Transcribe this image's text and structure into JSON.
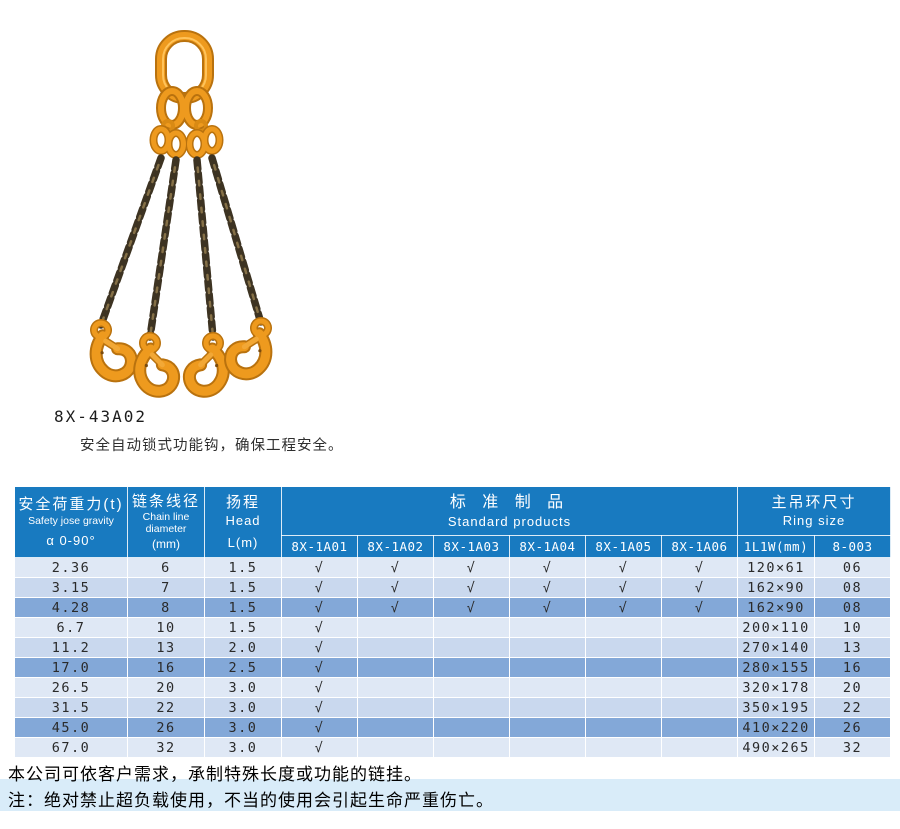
{
  "product": {
    "code": "8X-43A02",
    "description": "安全自动锁式功能钩，确保工程安全。",
    "image_name": "four-leg-chain-sling-with-self-locking-hooks"
  },
  "colors": {
    "header_blue": "#187ac0",
    "row_light": "#dfe8f5",
    "row_medium": "#c9d8ee",
    "row_highlight": "#83a8d8",
    "footer_band": "#d9ecf9",
    "sling_orange": "#ee9a1e",
    "chain_dark": "#3d3322"
  },
  "table": {
    "col_safety": {
      "zh": "安全荷重力(t)",
      "en": "Safety jose gravity",
      "angle": "α 0-90°"
    },
    "col_chain": {
      "zh": "链条线径",
      "en_line1": "Chain line",
      "en_line2": "diameter",
      "unit": "(mm)"
    },
    "col_head": {
      "zh": "扬程",
      "en": "Head",
      "unit": "L(m)"
    },
    "group_standard": {
      "zh": "标 准 制 品",
      "en": "Standard products"
    },
    "group_ring": {
      "zh": "主吊环尺寸",
      "en": "Ring size"
    },
    "models": [
      "8X-1A01",
      "8X-1A02",
      "8X-1A03",
      "8X-1A04",
      "8X-1A05",
      "8X-1A06"
    ],
    "ring_cols": [
      "1L1W(mm)",
      "8-003"
    ],
    "check_mark": "√",
    "rows": [
      {
        "load": "2.36",
        "dia": "6",
        "head": "1.5",
        "checks": [
          true,
          true,
          true,
          true,
          true,
          true
        ],
        "ring": "120×61",
        "ring_code": "06",
        "shade": "light"
      },
      {
        "load": "3.15",
        "dia": "7",
        "head": "1.5",
        "checks": [
          true,
          true,
          true,
          true,
          true,
          true
        ],
        "ring": "162×90",
        "ring_code": "08",
        "shade": "medium"
      },
      {
        "load": "4.28",
        "dia": "8",
        "head": "1.5",
        "checks": [
          true,
          true,
          true,
          true,
          true,
          true
        ],
        "ring": "162×90",
        "ring_code": "08",
        "shade": "highlight"
      },
      {
        "load": "6.7",
        "dia": "10",
        "head": "1.5",
        "checks": [
          true,
          false,
          false,
          false,
          false,
          false
        ],
        "ring": "200×110",
        "ring_code": "10",
        "shade": "light"
      },
      {
        "load": "11.2",
        "dia": "13",
        "head": "2.0",
        "checks": [
          true,
          false,
          false,
          false,
          false,
          false
        ],
        "ring": "270×140",
        "ring_code": "13",
        "shade": "medium"
      },
      {
        "load": "17.0",
        "dia": "16",
        "head": "2.5",
        "checks": [
          true,
          false,
          false,
          false,
          false,
          false
        ],
        "ring": "280×155",
        "ring_code": "16",
        "shade": "highlight"
      },
      {
        "load": "26.5",
        "dia": "20",
        "head": "3.0",
        "checks": [
          true,
          false,
          false,
          false,
          false,
          false
        ],
        "ring": "320×178",
        "ring_code": "20",
        "shade": "light"
      },
      {
        "load": "31.5",
        "dia": "22",
        "head": "3.0",
        "checks": [
          true,
          false,
          false,
          false,
          false,
          false
        ],
        "ring": "350×195",
        "ring_code": "22",
        "shade": "medium"
      },
      {
        "load": "45.0",
        "dia": "26",
        "head": "3.0",
        "checks": [
          true,
          false,
          false,
          false,
          false,
          false
        ],
        "ring": "410×220",
        "ring_code": "26",
        "shade": "highlight"
      },
      {
        "load": "67.0",
        "dia": "32",
        "head": "3.0",
        "checks": [
          true,
          false,
          false,
          false,
          false,
          false
        ],
        "ring": "490×265",
        "ring_code": "32",
        "shade": "light"
      }
    ]
  },
  "footer": {
    "line1": "本公司可依客户需求，承制特殊长度或功能的链挂。",
    "line2": "注：绝对禁止超负载使用，不当的使用会引起生命严重伤亡。"
  }
}
